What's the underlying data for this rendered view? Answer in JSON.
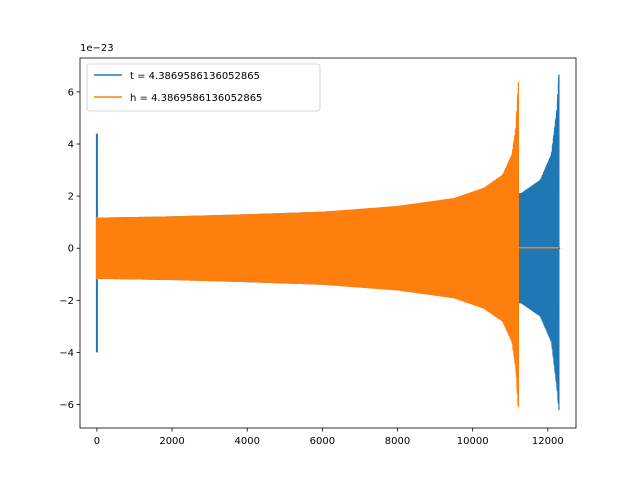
{
  "chart_data": {
    "type": "line",
    "title": "",
    "xlabel": "",
    "ylabel": "",
    "y_offset_text": "1e−23",
    "xlim": [
      -450,
      12750
    ],
    "ylim": [
      -6.9,
      7.3
    ],
    "x_ticks": [
      0,
      2000,
      4000,
      6000,
      8000,
      10000,
      12000
    ],
    "y_ticks": [
      -6,
      -4,
      -2,
      0,
      2,
      4,
      6
    ],
    "grid": false,
    "legend_position": "top-left",
    "series": [
      {
        "name": "t = 4.3869586136052865",
        "color": "#1f77b4",
        "envelope": {
          "start_spike": {
            "x": 0,
            "max": 4.4,
            "min": -4.0
          },
          "x": [
            0,
            2000,
            4000,
            6000,
            8000,
            10000,
            11000,
            11300,
            11800,
            12100,
            12250,
            12300
          ],
          "upper": [
            1.15,
            1.2,
            1.28,
            1.38,
            1.55,
            1.85,
            2.05,
            2.1,
            2.6,
            3.6,
            5.4,
            6.8
          ],
          "lower": [
            -1.15,
            -1.2,
            -1.28,
            -1.38,
            -1.55,
            -1.85,
            -2.05,
            -2.1,
            -2.6,
            -3.6,
            -5.4,
            -6.3
          ]
        },
        "tail": {
          "x_start": 12300,
          "x_end": 12330,
          "value": 0
        }
      },
      {
        "name": "h = 4.3869586136052865",
        "color": "#ff7f0e",
        "envelope": {
          "start_spike": {
            "x": 0,
            "max": 1.2,
            "min": -1.2
          },
          "x": [
            0,
            2000,
            4000,
            6000,
            8000,
            9500,
            10300,
            10800,
            11050,
            11150,
            11200,
            11230
          ],
          "upper": [
            1.15,
            1.2,
            1.28,
            1.38,
            1.6,
            1.9,
            2.3,
            2.8,
            3.6,
            4.6,
            5.8,
            6.8
          ],
          "lower": [
            -1.15,
            -1.2,
            -1.28,
            -1.38,
            -1.6,
            -1.9,
            -2.3,
            -2.8,
            -3.6,
            -4.6,
            -5.8,
            -6.3
          ]
        },
        "tail": {
          "x_start": 11230,
          "x_end": 12300,
          "value": 0.02
        }
      }
    ]
  }
}
